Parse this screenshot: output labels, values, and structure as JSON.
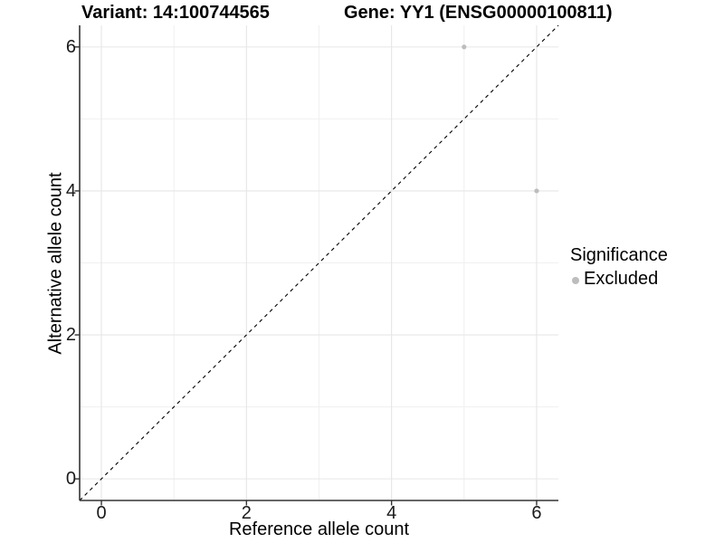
{
  "title": {
    "left": "Variant: 14:100744565",
    "right": "Gene: YY1 (ENSG00000100811)"
  },
  "chart_data": {
    "type": "scatter",
    "title": "Variant: 14:100744565   Gene: YY1 (ENSG00000100811)",
    "xlabel": "Reference allele count",
    "ylabel": "Alternative allele count",
    "xlim": [
      -0.3,
      6.3
    ],
    "ylim": [
      -0.3,
      6.3
    ],
    "x_ticks": [
      0,
      2,
      4,
      6
    ],
    "y_ticks": [
      0,
      2,
      4,
      6
    ],
    "x_minor_ticks": [
      1,
      3,
      5
    ],
    "y_minor_ticks": [
      1,
      3,
      5
    ],
    "grid": "on",
    "series": [
      {
        "name": "Excluded",
        "color": "#bdbdbd",
        "points": [
          {
            "x": 5,
            "y": 6
          },
          {
            "x": 6,
            "y": 4
          }
        ]
      }
    ],
    "reference_line": {
      "type": "identity",
      "style": "dashed",
      "color": "#000000"
    },
    "legend": {
      "title": "Significance",
      "position": "right",
      "entries": [
        {
          "label": "Excluded",
          "color": "#bdbdbd"
        }
      ]
    }
  },
  "colors": {
    "background": "#ffffff",
    "axis_line": "#333333",
    "tick_mark": "#333333",
    "tick_label": "#1a1a1a",
    "grid_major": "#e6e6e6",
    "grid_minor": "#f0f0f0",
    "point": "#bdbdbd"
  }
}
